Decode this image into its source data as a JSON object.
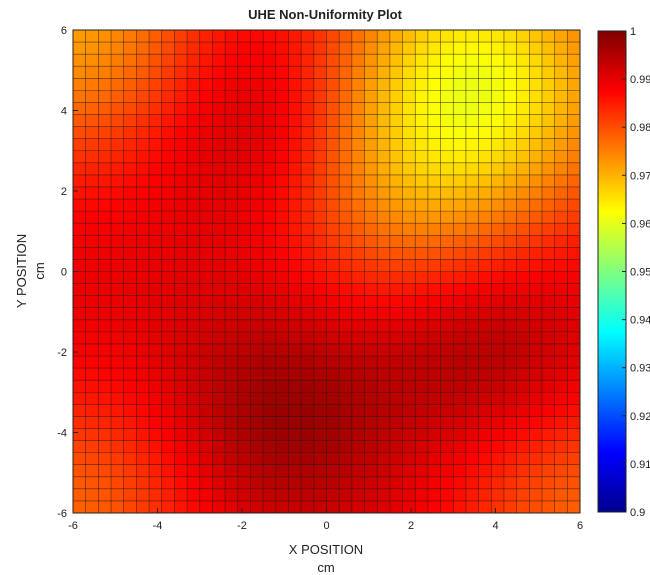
{
  "chart_data": {
    "type": "heatmap",
    "title": "UHE Non-Uniformity Plot",
    "xlabel": "X POSITION",
    "xunit": "cm",
    "ylabel": "Y POSITION",
    "yunit": "cm",
    "xlim": [
      -6,
      6
    ],
    "ylim": [
      -6,
      6
    ],
    "x_ticks": [
      "-6",
      "-4",
      "-2",
      "0",
      "2",
      "4",
      "6"
    ],
    "y_ticks": [
      "6",
      "4",
      "2",
      "0",
      "-2",
      "-4",
      "-6"
    ],
    "grid_cells": 40,
    "colormap": "jet",
    "colorbar": {
      "range": [
        0.9,
        1.0
      ],
      "tick_labels": [
        "1",
        "0.99",
        "0.98",
        "0.97",
        "0.96",
        "0.95",
        "0.94",
        "0.93",
        "0.92",
        "0.91",
        "0.9"
      ]
    },
    "field": {
      "base": 0.99,
      "features": [
        {
          "x": -1.5,
          "y": 3.9,
          "amplitude": 0.007,
          "sigma": 1.9,
          "kind": "high"
        },
        {
          "x": -1.0,
          "y": -3.6,
          "amplitude": 0.008,
          "sigma": 1.9,
          "kind": "high"
        },
        {
          "x": 3.8,
          "y": -2.0,
          "amplitude": 0.007,
          "sigma": 1.8,
          "kind": "high"
        },
        {
          "x": 3.5,
          "y": 4.7,
          "amplitude": 0.028,
          "sigma": 2.6,
          "kind": "low"
        },
        {
          "x": -6.0,
          "y": 6.0,
          "amplitude": 0.018,
          "sigma": 2.4,
          "kind": "low"
        },
        {
          "x": 6.0,
          "y": -6.0,
          "amplitude": 0.012,
          "sigma": 2.2,
          "kind": "low"
        },
        {
          "x": -6.0,
          "y": -6.0,
          "amplitude": 0.012,
          "sigma": 2.2,
          "kind": "low"
        },
        {
          "x": 1.5,
          "y": 1.5,
          "amplitude": 0.008,
          "sigma": 2.0,
          "kind": "low"
        }
      ]
    }
  }
}
